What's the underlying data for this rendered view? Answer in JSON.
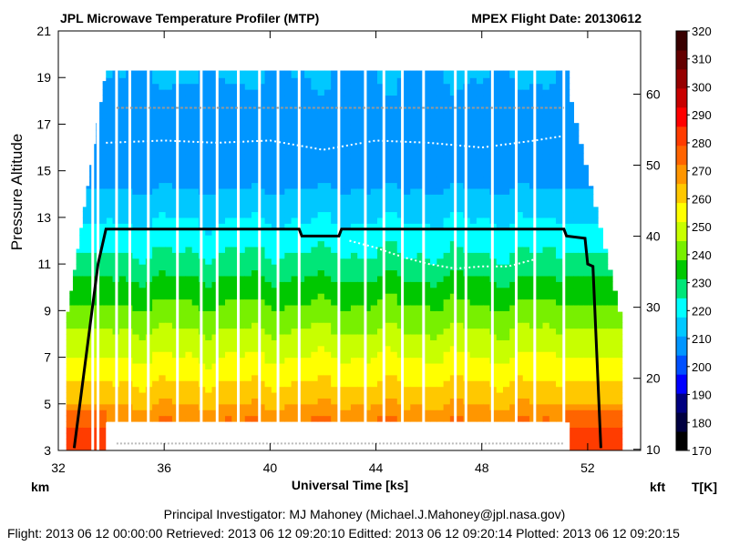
{
  "chart_data": {
    "type": "heatmap",
    "title": "JPL Microwave Temperature Profiler (MTP)",
    "subtitle": "MPEX  Flight Date: 20130612",
    "xlabel": "Universal Time [ks]",
    "ylabel": "Pressure Altitude",
    "left_unit": "km",
    "right_unit": "kft",
    "colorbar_label": "T[K]",
    "xlim": [
      32,
      54
    ],
    "ylim": [
      3,
      21
    ],
    "x_ticks": [
      32,
      36,
      40,
      44,
      48,
      52
    ],
    "y_ticks": [
      3,
      5,
      7,
      9,
      11,
      13,
      15,
      17,
      19,
      21
    ],
    "y2_ticks": [
      10,
      20,
      30,
      40,
      50,
      60
    ],
    "colorbar_ticks": [
      170,
      180,
      190,
      200,
      210,
      220,
      230,
      240,
      250,
      260,
      270,
      280,
      290,
      300,
      310,
      320
    ],
    "colorbar_colors": [
      "#000000",
      "#000040",
      "#000080",
      "#0000ff",
      "#0050ff",
      "#0096ff",
      "#00c8ff",
      "#00ffff",
      "#00e678",
      "#00c800",
      "#78f000",
      "#c8ff00",
      "#ffff00",
      "#ffc800",
      "#ff9600",
      "#ff6400",
      "#ff3c00",
      "#ff0000",
      "#c80000",
      "#960000",
      "#640000",
      "#380000"
    ],
    "profile_x_range": [
      33.8,
      51.1
    ],
    "data_x_range": [
      32.3,
      53.3
    ],
    "temperature_profile": [
      {
        "alt": 3,
        "temp": 280
      },
      {
        "alt": 4,
        "temp": 275
      },
      {
        "alt": 5,
        "temp": 265
      },
      {
        "alt": 6,
        "temp": 258
      },
      {
        "alt": 7,
        "temp": 252
      },
      {
        "alt": 8,
        "temp": 246
      },
      {
        "alt": 9,
        "temp": 240
      },
      {
        "alt": 10,
        "temp": 234
      },
      {
        "alt": 11,
        "temp": 227
      },
      {
        "alt": 12,
        "temp": 222
      },
      {
        "alt": 13,
        "temp": 217
      },
      {
        "alt": 14,
        "temp": 212
      },
      {
        "alt": 15,
        "temp": 207
      },
      {
        "alt": 16,
        "temp": 206
      },
      {
        "alt": 17,
        "temp": 207
      },
      {
        "alt": 18,
        "temp": 209
      },
      {
        "alt": 19,
        "temp": 211
      }
    ],
    "aircraft_altitude_km": [
      {
        "t": 32.6,
        "alt": 3.1
      },
      {
        "t": 33.5,
        "alt": 11.0
      },
      {
        "t": 33.8,
        "alt": 12.5
      },
      {
        "t": 41.1,
        "alt": 12.5
      },
      {
        "t": 41.2,
        "alt": 12.2
      },
      {
        "t": 42.6,
        "alt": 12.2
      },
      {
        "t": 42.7,
        "alt": 12.5
      },
      {
        "t": 51.1,
        "alt": 12.5
      },
      {
        "t": 51.2,
        "alt": 12.2
      },
      {
        "t": 51.9,
        "alt": 12.1
      },
      {
        "t": 52.0,
        "alt": 11.0
      },
      {
        "t": 52.2,
        "alt": 10.9
      },
      {
        "t": 52.5,
        "alt": 3.1
      }
    ],
    "tropopause_km": [
      {
        "t": 33.8,
        "alt": 16.2
      },
      {
        "t": 36,
        "alt": 16.3
      },
      {
        "t": 38,
        "alt": 16.2
      },
      {
        "t": 40,
        "alt": 16.3
      },
      {
        "t": 42,
        "alt": 15.9
      },
      {
        "t": 44,
        "alt": 16.3
      },
      {
        "t": 46,
        "alt": 16.2
      },
      {
        "t": 48,
        "alt": 16.0
      },
      {
        "t": 50,
        "alt": 16.3
      },
      {
        "t": 51.1,
        "alt": 16.5
      }
    ],
    "second_tropopause_km": [
      {
        "t": 43.0,
        "alt": 12.0
      },
      {
        "t": 44.0,
        "alt": 11.7
      },
      {
        "t": 45.0,
        "alt": 11.3
      },
      {
        "t": 46.0,
        "alt": 11.0
      },
      {
        "t": 47.0,
        "alt": 10.8
      },
      {
        "t": 48.0,
        "alt": 10.9
      },
      {
        "t": 49.0,
        "alt": 10.9
      },
      {
        "t": 50.0,
        "alt": 11.2
      }
    ],
    "data_gaps_ks": [
      33.3,
      33.5,
      34.2,
      34.7,
      35.4,
      36.5,
      37.4,
      38.0,
      38.8,
      39.6,
      40.3,
      41.1,
      42.6,
      43.6,
      44.3,
      45.0,
      45.8,
      47.0,
      47.4,
      48.4,
      49.3,
      50.0,
      51.1
    ]
  },
  "footer": {
    "pi": "Principal Investigator: MJ Mahoney (Michael.J.Mahoney@jpl.nasa.gov)",
    "dates": "Flight: 2013 06 12 00:00:00   Retrieved: 2013 06 12 09:20:10   Editted: 2013 06 12 09:20:14   Plotted: 2013 06 12 09:20:15"
  }
}
